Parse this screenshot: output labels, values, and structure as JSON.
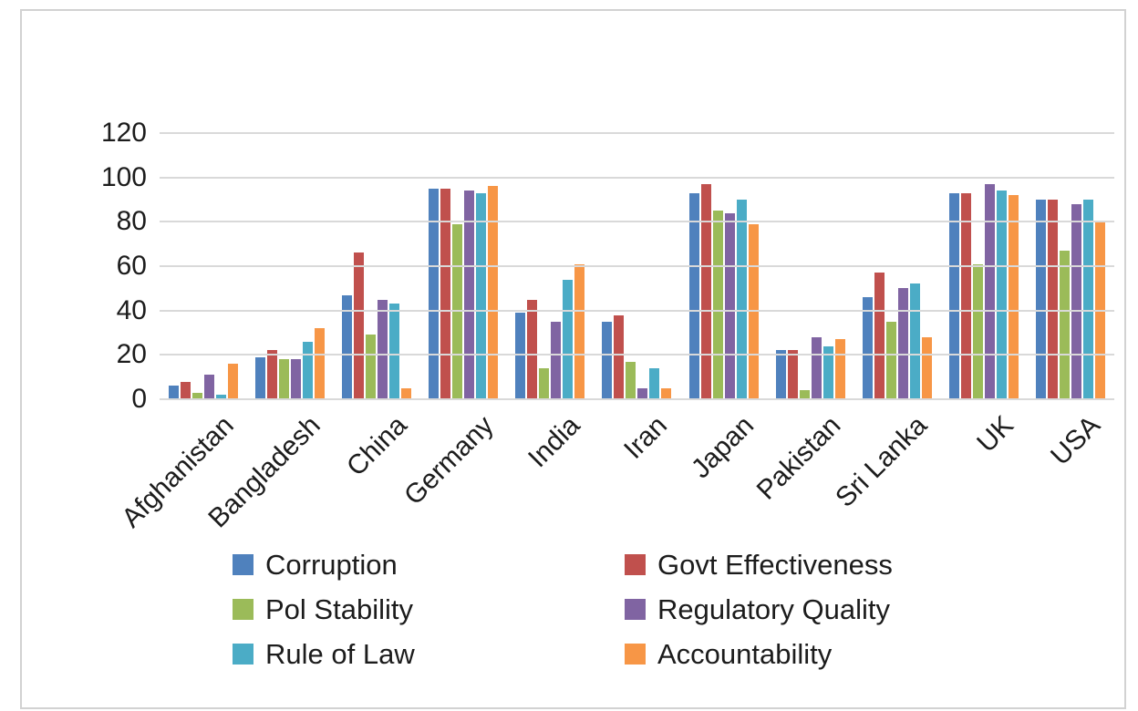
{
  "chart_data": {
    "type": "bar",
    "title": "",
    "xlabel": "",
    "ylabel": "",
    "categories": [
      "Afghanistan",
      "Bangladesh",
      "China",
      "Germany",
      "India",
      "Iran",
      "Japan",
      "Pakistan",
      "Sri Lanka",
      "UK",
      "USA"
    ],
    "series": [
      {
        "name": "Corruption",
        "color": "#4F81BD",
        "values": [
          6,
          19,
          47,
          95,
          39,
          35,
          93,
          22,
          46,
          93,
          90
        ]
      },
      {
        "name": "Govt Effectiveness",
        "color": "#C0504D",
        "values": [
          8,
          22,
          66,
          95,
          45,
          38,
          97,
          22,
          57,
          93,
          90
        ]
      },
      {
        "name": "Pol Stability",
        "color": "#9BBB59",
        "values": [
          3,
          18,
          29,
          79,
          14,
          17,
          85,
          4,
          35,
          61,
          67
        ]
      },
      {
        "name": "Regulatory Quality",
        "color": "#8064A2",
        "values": [
          11,
          18,
          45,
          94,
          35,
          5,
          84,
          28,
          50,
          97,
          88
        ]
      },
      {
        "name": "Rule of Law",
        "color": "#4BACC6",
        "values": [
          2,
          26,
          43,
          93,
          54,
          14,
          90,
          24,
          52,
          94,
          90
        ]
      },
      {
        "name": "Accountability",
        "color": "#F79646",
        "values": [
          16,
          32,
          5,
          96,
          61,
          5,
          79,
          27,
          28,
          92,
          80
        ]
      }
    ],
    "y_ticks": [
      0,
      20,
      40,
      60,
      80,
      100,
      120
    ],
    "ylim": [
      0,
      120
    ],
    "grid": "horizontal",
    "gridline_color": "#D9D9D9",
    "legend_position": "bottom",
    "legend_columns": 2,
    "x_label_rotation_deg": -45
  }
}
